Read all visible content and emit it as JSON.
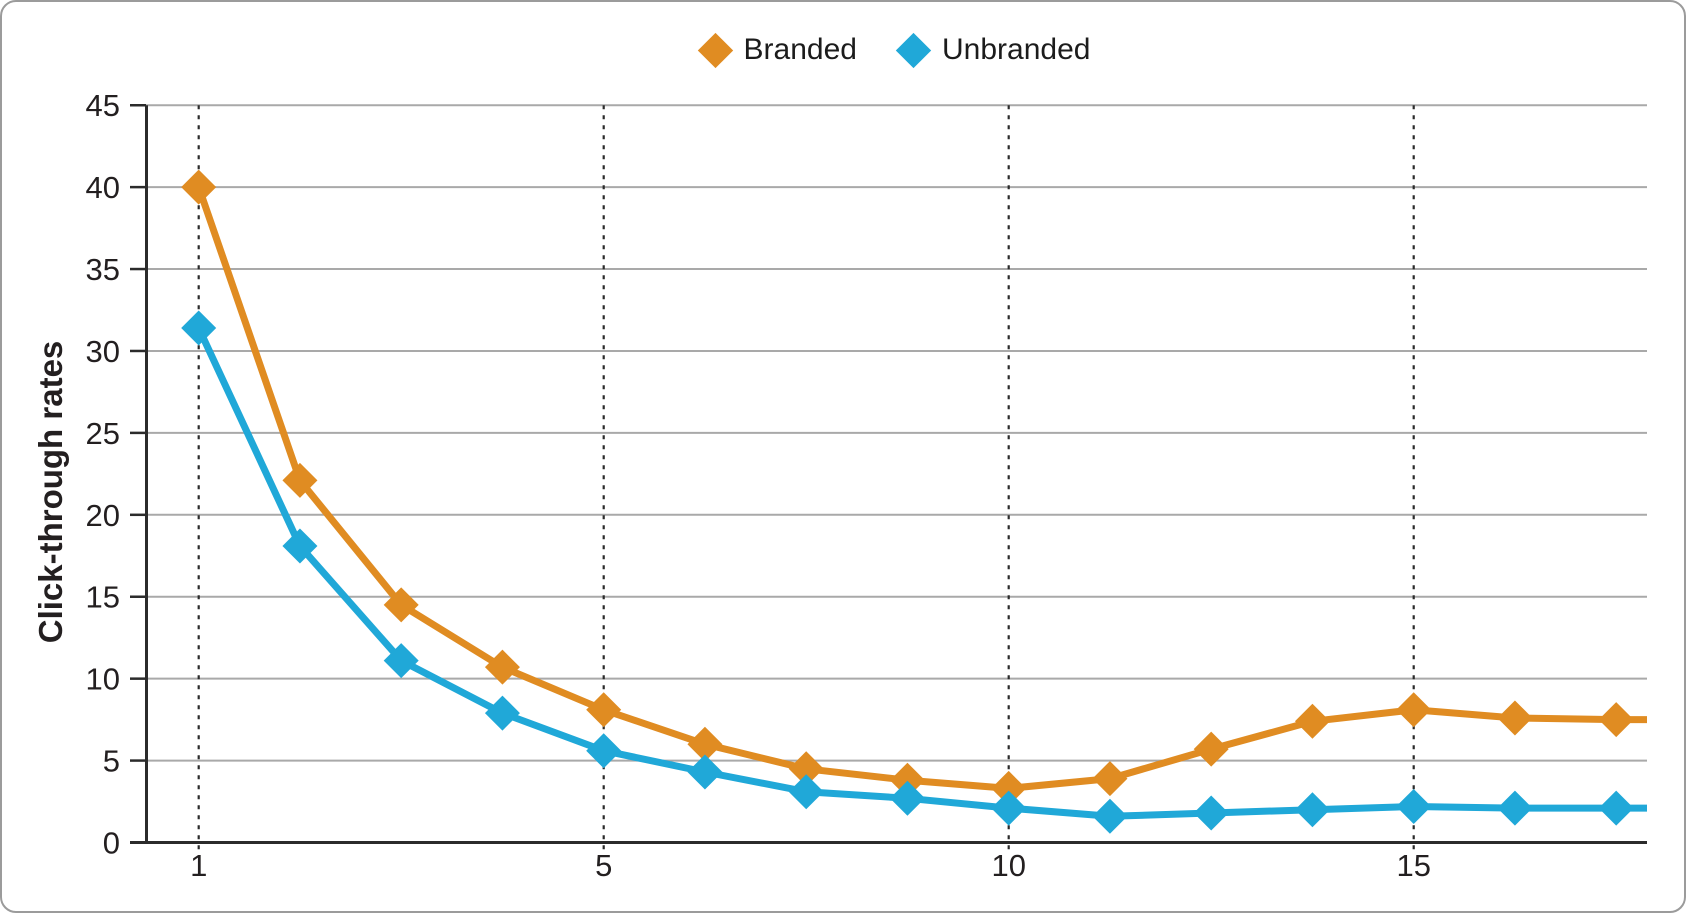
{
  "card": {
    "background": "#ffffff",
    "border_color": "#9b9b9b"
  },
  "legend": {
    "position": "top-center",
    "items": [
      {
        "label": "Branded",
        "color": "#e08c22",
        "marker": "diamond"
      },
      {
        "label": "Unbranded",
        "color": "#20a8d8",
        "marker": "diamond"
      }
    ]
  },
  "chart_data": {
    "type": "line",
    "title": "",
    "xlabel": "",
    "ylabel": "Click-through rates",
    "ylim": [
      0,
      45
    ],
    "y_ticks": [
      0,
      5,
      10,
      15,
      20,
      25,
      30,
      35,
      40,
      45
    ],
    "x_tick_labels": [
      "1",
      "5",
      "10",
      "15"
    ],
    "x_tick_point_indices": [
      1,
      5,
      9,
      13
    ],
    "points_per_series": 15,
    "grid": {
      "horizontal": "solid light gray at every 5 units",
      "vertical": "black dotted lines at labeled ticks only",
      "gridline_color": "#a9a9a9",
      "axis_color": "#2b2b2b"
    },
    "legend_position": "top-center",
    "line_extends_past_last_point": true,
    "series": [
      {
        "name": "Branded",
        "color": "#e08c22",
        "marker": "diamond",
        "values": [
          40,
          22.1,
          14.5,
          10.7,
          8.1,
          6.0,
          4.5,
          3.8,
          3.3,
          3.9,
          5.7,
          7.4,
          8.1,
          7.6,
          7.5
        ]
      },
      {
        "name": "Unbranded",
        "color": "#20a8d8",
        "marker": "diamond",
        "values": [
          31.4,
          18.1,
          11.1,
          7.9,
          5.6,
          4.3,
          3.1,
          2.7,
          2.1,
          1.6,
          1.8,
          2.0,
          2.2,
          2.1,
          2.1
        ]
      }
    ]
  }
}
